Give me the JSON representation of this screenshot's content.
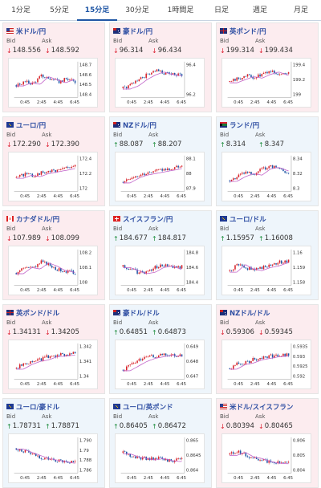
{
  "tabs": [
    {
      "label": "1分足",
      "active": false
    },
    {
      "label": "5分足",
      "active": false
    },
    {
      "label": "15分足",
      "active": true
    },
    {
      "label": "30分足",
      "active": false
    },
    {
      "label": "1時間足",
      "active": false
    },
    {
      "label": "日足",
      "active": false
    },
    {
      "label": "週足",
      "active": false
    },
    {
      "label": "月足",
      "active": false
    }
  ],
  "labels": {
    "bid": "Bid",
    "ask": "Ask"
  },
  "x_ticks": [
    "0:45",
    "2:45",
    "4:45",
    "6:45"
  ],
  "colors": {
    "up_bg": "#eef5fb",
    "down_bg": "#fcecef",
    "up_candle": "#d8232a",
    "down_candle": "#1f56a5",
    "ma_line": "#c060c8",
    "axis": "#999999"
  },
  "cards": [
    {
      "pair": "米ドル/円",
      "flag": "us",
      "dir": "down",
      "bid": "148.556",
      "ask": "148.592",
      "y_ticks": [
        "148.7",
        "148.6",
        "148.5",
        "148.4"
      ],
      "trend": [
        0.35,
        0.45,
        0.4,
        0.65,
        0.55,
        0.45,
        0.55,
        0.45
      ]
    },
    {
      "pair": "豪ドル/円",
      "flag": "au",
      "dir": "down",
      "bid": "96.314",
      "ask": "96.434",
      "y_ticks": [
        "96.4",
        "96.2"
      ],
      "trend": [
        0.25,
        0.35,
        0.55,
        0.7,
        0.8,
        0.72,
        0.68,
        0.7
      ]
    },
    {
      "pair": "英ポンド/円",
      "flag": "uk",
      "dir": "down",
      "bid": "199.314",
      "ask": "199.434",
      "y_ticks": [
        "199.4",
        "199.2",
        "199"
      ],
      "trend": [
        0.45,
        0.55,
        0.65,
        0.6,
        0.72,
        0.8,
        0.7,
        0.72
      ]
    },
    {
      "pair": "ユーロ/円",
      "flag": "eu",
      "dir": "down",
      "bid": "172.290",
      "ask": "172.390",
      "y_ticks": [
        "172.4",
        "172.2",
        "172"
      ],
      "trend": [
        0.4,
        0.5,
        0.45,
        0.55,
        0.6,
        0.65,
        0.7,
        0.78
      ]
    },
    {
      "pair": "NZドル/円",
      "flag": "nz",
      "dir": "up",
      "bid": "88.087",
      "ask": "88.207",
      "y_ticks": [
        "88.1",
        "88",
        "87.9"
      ],
      "trend": [
        0.25,
        0.4,
        0.5,
        0.55,
        0.6,
        0.65,
        0.7,
        0.78
      ]
    },
    {
      "pair": "ランド/円",
      "flag": "za",
      "dir": "up",
      "bid": "8.314",
      "ask": "8.347",
      "y_ticks": [
        "8.34",
        "8.32",
        "8.3"
      ],
      "trend": [
        0.3,
        0.45,
        0.55,
        0.5,
        0.7,
        0.75,
        0.65,
        0.55
      ]
    },
    {
      "pair": "カナダドル/円",
      "flag": "ca",
      "dir": "down",
      "bid": "107.989",
      "ask": "108.099",
      "y_ticks": [
        "108.2",
        "108.1",
        "108"
      ],
      "trend": [
        0.35,
        0.55,
        0.5,
        0.7,
        0.6,
        0.45,
        0.4,
        0.35
      ]
    },
    {
      "pair": "スイスフラン/円",
      "flag": "ch",
      "dir": "up",
      "bid": "184.677",
      "ask": "184.817",
      "y_ticks": [
        "184.8",
        "184.6",
        "184.4"
      ],
      "trend": [
        0.55,
        0.45,
        0.35,
        0.4,
        0.55,
        0.6,
        0.5,
        0.55
      ]
    },
    {
      "pair": "ユーロ/ドル",
      "flag": "eu",
      "dir": "up",
      "bid": "1.15957",
      "ask": "1.16008",
      "y_ticks": [
        "1.16",
        "1.159",
        "1.158"
      ],
      "trend": [
        0.4,
        0.65,
        0.5,
        0.45,
        0.55,
        0.6,
        0.7,
        0.75
      ]
    },
    {
      "pair": "英ポンド/ドル",
      "flag": "uk",
      "dir": "down",
      "bid": "1.34131",
      "ask": "1.34205",
      "y_ticks": [
        "1.342",
        "1.341",
        "1.34"
      ],
      "trend": [
        0.3,
        0.45,
        0.55,
        0.6,
        0.7,
        0.72,
        0.75,
        0.78
      ]
    },
    {
      "pair": "豪ドル/ドル",
      "flag": "au",
      "dir": "up",
      "bid": "0.64851",
      "ask": "0.64873",
      "y_ticks": [
        "0.649",
        "0.648",
        "0.647"
      ],
      "trend": [
        0.25,
        0.4,
        0.55,
        0.65,
        0.7,
        0.75,
        0.72,
        0.7
      ]
    },
    {
      "pair": "NZドル/ドル",
      "flag": "nz",
      "dir": "down",
      "bid": "0.59306",
      "ask": "0.59345",
      "y_ticks": [
        "0.5935",
        "0.593",
        "0.5925",
        "0.592"
      ],
      "trend": [
        0.3,
        0.45,
        0.5,
        0.6,
        0.65,
        0.7,
        0.72,
        0.75
      ]
    },
    {
      "pair": "ユーロ/豪ドル",
      "flag": "eu",
      "dir": "up",
      "bid": "1.78731",
      "ask": "1.78871",
      "y_ticks": [
        "1.790",
        "1.79",
        "1.788",
        "1.786"
      ],
      "trend": [
        0.75,
        0.65,
        0.55,
        0.45,
        0.4,
        0.35,
        0.3,
        0.28
      ]
    },
    {
      "pair": "ユーロ/英ポンド",
      "flag": "eu",
      "dir": "up",
      "bid": "0.86405",
      "ask": "0.86472",
      "y_ticks": [
        "0.865",
        "0.8645",
        "0.864"
      ],
      "trend": [
        0.6,
        0.5,
        0.45,
        0.4,
        0.45,
        0.38,
        0.35,
        0.4
      ]
    },
    {
      "pair": "米ドル/スイスフラン",
      "flag": "us",
      "dir": "down",
      "bid": "0.80394",
      "ask": "0.80465",
      "y_ticks": [
        "0.806",
        "0.805",
        "0.804"
      ],
      "trend": [
        0.55,
        0.65,
        0.5,
        0.45,
        0.35,
        0.3,
        0.28,
        0.3
      ]
    }
  ]
}
